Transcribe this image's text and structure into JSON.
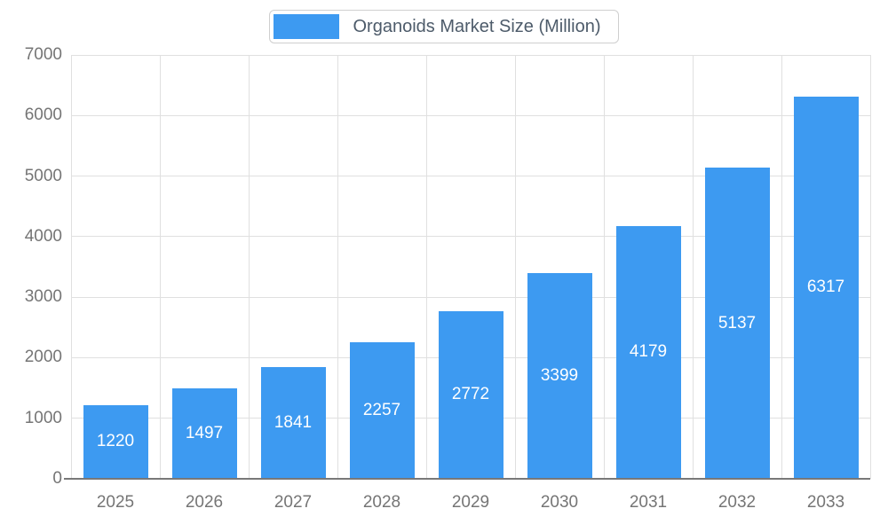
{
  "chart_data": {
    "type": "bar",
    "title": "Organoids Market Size (Million)",
    "categories": [
      "2025",
      "2026",
      "2027",
      "2028",
      "2029",
      "2030",
      "2031",
      "2032",
      "2033"
    ],
    "values": [
      1220,
      1497,
      1841,
      2257,
      2772,
      3399,
      4179,
      5137,
      6317
    ],
    "xlabel": "",
    "ylabel": "",
    "ylim": [
      0,
      7000
    ],
    "ytick_step": 1000,
    "grid": true,
    "legend_position": "top",
    "bar_color": "#3D9AF1",
    "bar_label_color": "#ffffff",
    "axis_text_color": "#757575",
    "grid_color": "#e0e0e0"
  },
  "legend": {
    "label": "Organoids Market Size (Million)"
  }
}
